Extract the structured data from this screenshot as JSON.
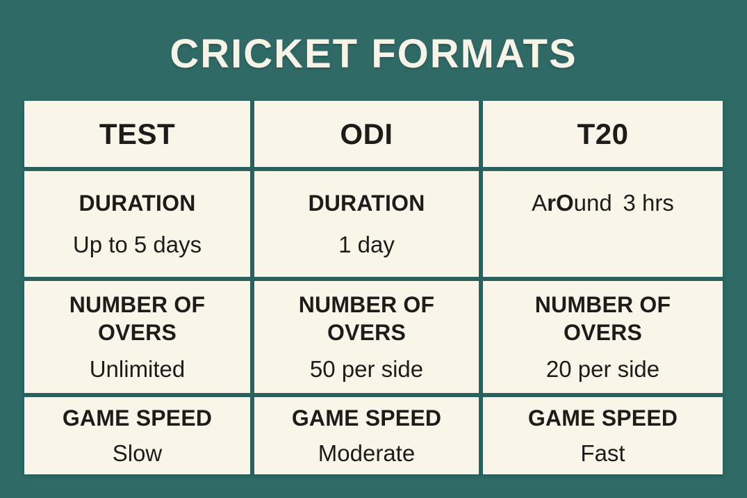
{
  "colors": {
    "background": "#2f6a67",
    "grid_line": "#2a605e",
    "cell_background": "#faf5e9",
    "text": "#1d1c1a",
    "title_text": "#f8f3e7"
  },
  "title": "CRICKET FORMATS",
  "table": {
    "columns": [
      "TEST",
      "ODI",
      "T20"
    ],
    "rows": [
      {
        "name": "duration",
        "cells": [
          {
            "label": "DURATION",
            "value": "Up to 5 days"
          },
          {
            "label": "DURATION",
            "value": "1 day"
          },
          {
            "text": "Around 3 hrs",
            "text_parts": [
              "A",
              "rO",
              "und",
              "3 hrs"
            ],
            "value": ""
          }
        ]
      },
      {
        "name": "number-of-overs",
        "cells": [
          {
            "label": "NUMBER OF\nOVERS",
            "value": "Unlimited"
          },
          {
            "label": "NUMBER OF\nOVERS",
            "value": "50 per side"
          },
          {
            "label": "NUMBER OF\nOVERS",
            "value": "20 per side"
          }
        ]
      },
      {
        "name": "game-speed",
        "cells": [
          {
            "label": "GAME SPEED",
            "value": "Slow"
          },
          {
            "label": "GAME SPEED",
            "value": "Moderate"
          },
          {
            "label": "GAME SPEED",
            "value": "Fast"
          }
        ]
      }
    ]
  },
  "chart_data": {
    "type": "table",
    "title": "CRICKET FORMATS",
    "columns": [
      "TEST",
      "ODI",
      "T20"
    ],
    "row_labels": [
      "DURATION",
      "NUMBER OF OVERS",
      "GAME SPEED"
    ],
    "rows": [
      [
        "Up to 5 days",
        "1 day",
        "Around 3 hrs"
      ],
      [
        "Unlimited",
        "50 per side",
        "20 per side"
      ],
      [
        "Slow",
        "Moderate",
        "Fast"
      ]
    ]
  }
}
